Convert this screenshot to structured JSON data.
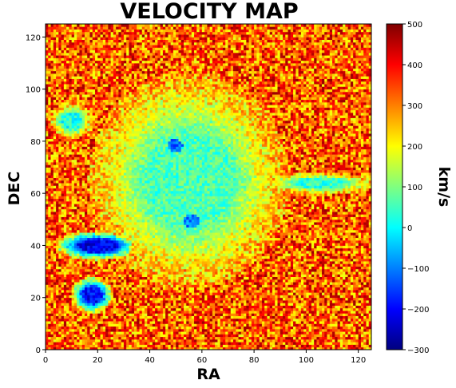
{
  "chart_data": {
    "type": "heatmap",
    "title": "VELOCITY MAP",
    "xlabel": "RA",
    "ylabel": "DEC",
    "xlim": [
      0,
      125
    ],
    "ylim": [
      0,
      125
    ],
    "xticks": [
      0,
      20,
      40,
      60,
      80,
      100,
      120
    ],
    "yticks": [
      0,
      20,
      40,
      60,
      80,
      100,
      120
    ],
    "grid_size": 125,
    "colormap": "jet",
    "colorbar": {
      "label": "km/s",
      "min": -300,
      "max": 500,
      "ticks": [
        -300,
        -200,
        -100,
        0,
        100,
        200,
        300,
        400,
        500
      ]
    },
    "background_velocity_approx": 330,
    "features": [
      {
        "desc": "central cyan/green region",
        "x_center": 55,
        "y_center": 65,
        "value_approx": 60
      },
      {
        "desc": "blue knot",
        "x_center": 50,
        "y_center": 78,
        "value_approx": -120
      },
      {
        "desc": "blue knot",
        "x_center": 56,
        "y_center": 50,
        "value_approx": -100
      },
      {
        "desc": "dark blue elongated clump",
        "x_center": 20,
        "y_center": 40,
        "value_approx": -220
      },
      {
        "desc": "dark blue clump",
        "x_center": 18,
        "y_center": 21,
        "value_approx": -200
      },
      {
        "desc": "cyan filament east",
        "x_center": 105,
        "y_center": 64,
        "value_approx": 40
      },
      {
        "desc": "cyan patch west",
        "x_center": 10,
        "y_center": 88,
        "value_approx": 20
      }
    ]
  }
}
